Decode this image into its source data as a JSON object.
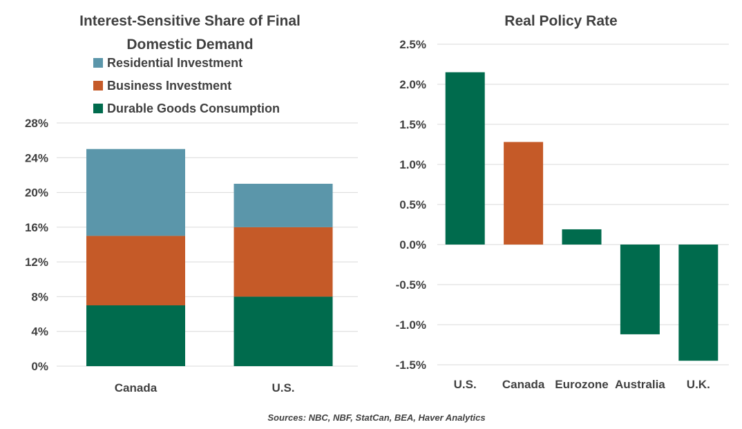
{
  "source_note": "Sources: NBC, NBF, StatCan, BEA, Haver Analytics",
  "colors": {
    "residential": "#5b96aa",
    "business": "#c55a28",
    "durable": "#006b4d",
    "grid": "#d9d9d9",
    "text": "#404040"
  },
  "chart_data": [
    {
      "type": "bar",
      "stacked": true,
      "title_lines": [
        "Interest-Sensitive Share of Final",
        "Domestic Demand"
      ],
      "categories": [
        "Canada",
        "U.S."
      ],
      "series": [
        {
          "name": "Durable Goods Consumption",
          "color": "#006b4d",
          "values": [
            7,
            8
          ]
        },
        {
          "name": "Business Investment",
          "color": "#c55a28",
          "values": [
            8,
            8
          ]
        },
        {
          "name": "Residential Investment",
          "color": "#5b96aa",
          "values": [
            10,
            5
          ]
        }
      ],
      "legend_order": [
        "Residential Investment",
        "Business Investment",
        "Durable Goods Consumption"
      ],
      "legend_position": "top-left",
      "ylim": [
        0,
        28
      ],
      "yticks": [
        0,
        4,
        8,
        12,
        16,
        20,
        24,
        28
      ],
      "ytick_labels": [
        "0%",
        "4%",
        "8%",
        "12%",
        "16%",
        "20%",
        "24%",
        "28%"
      ],
      "grid": true
    },
    {
      "type": "bar",
      "title": "Real Policy Rate",
      "categories": [
        "U.S.",
        "Canada",
        "Eurozone",
        "Australia",
        "U.K."
      ],
      "values": [
        2.15,
        1.28,
        0.19,
        -1.12,
        -1.45
      ],
      "bar_colors": [
        "#006b4d",
        "#c55a28",
        "#006b4d",
        "#006b4d",
        "#006b4d"
      ],
      "ylim": [
        -1.5,
        2.5
      ],
      "yticks": [
        -1.5,
        -1.0,
        -0.5,
        0.0,
        0.5,
        1.0,
        1.5,
        2.0,
        2.5
      ],
      "ytick_labels": [
        "-1.5%",
        "-1.0%",
        "-0.5%",
        "0.0%",
        "0.5%",
        "1.0%",
        "1.5%",
        "2.0%",
        "2.5%"
      ],
      "grid": true
    }
  ]
}
